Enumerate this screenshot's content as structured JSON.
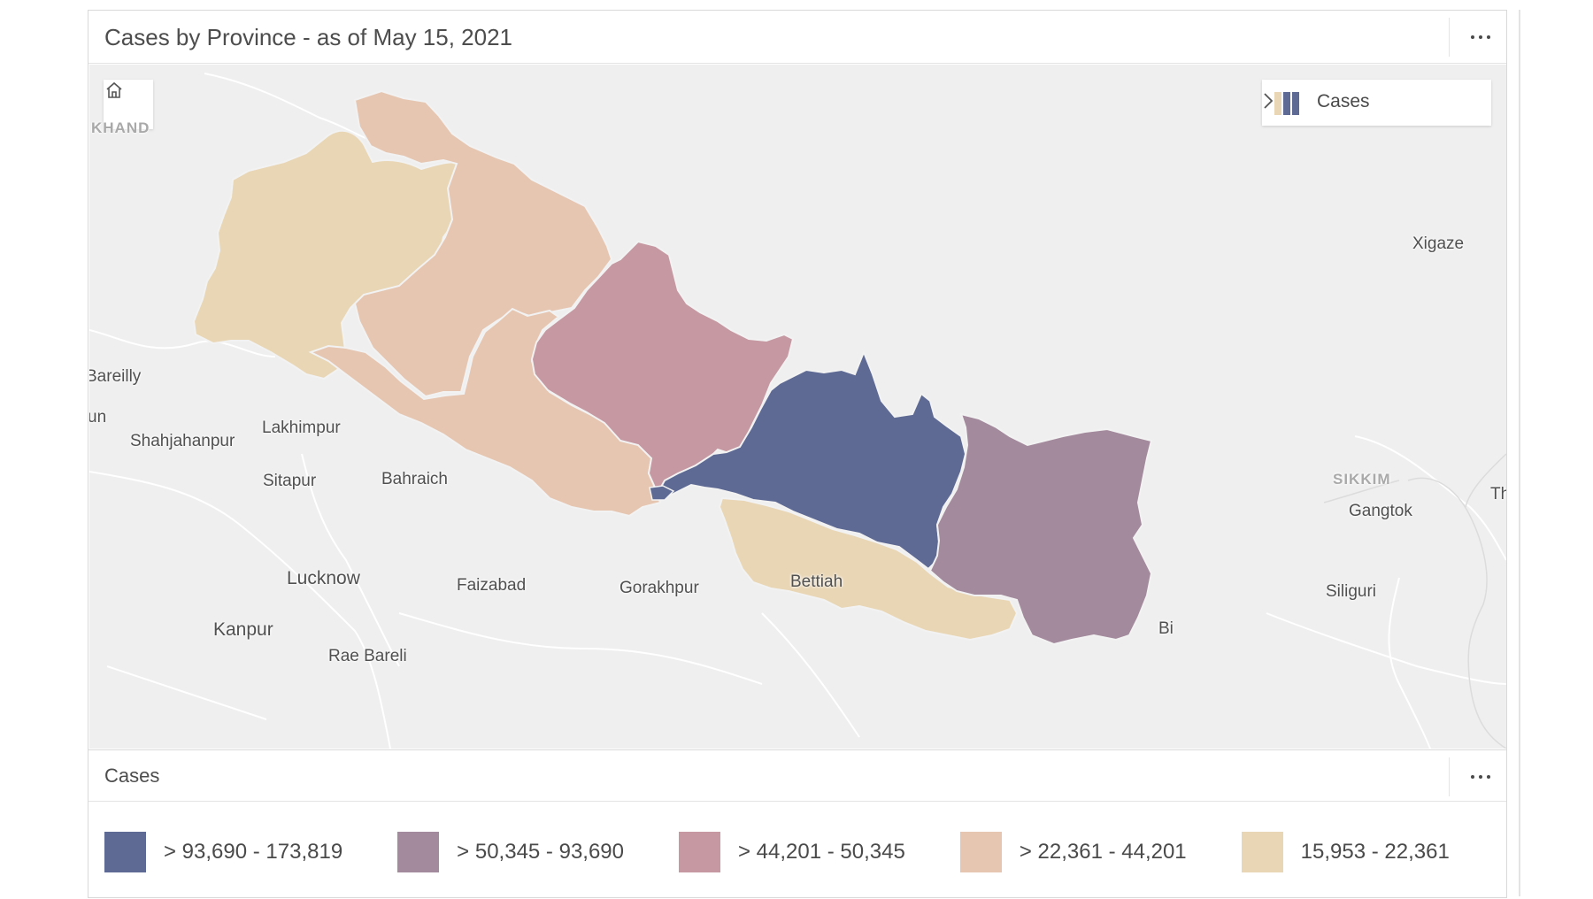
{
  "header": {
    "title": "Cases by Province - as of May 15, 2021"
  },
  "map": {
    "legend_toggle_label": "Cases",
    "places": [
      {
        "id": "kh",
        "label": "KHAND",
        "kind": "region"
      },
      {
        "id": "xigaze",
        "label": "Xigaze",
        "kind": "city"
      },
      {
        "id": "bareilly",
        "label": "Bareilly",
        "kind": "city"
      },
      {
        "id": "un",
        "label": "un",
        "kind": "city"
      },
      {
        "id": "lakhimpur",
        "label": "Lakhimpur",
        "kind": "city"
      },
      {
        "id": "shahjahanpur",
        "label": "Shahjahanpur",
        "kind": "city"
      },
      {
        "id": "sitapur",
        "label": "Sitapur",
        "kind": "city"
      },
      {
        "id": "bahraich",
        "label": "Bahraich",
        "kind": "city"
      },
      {
        "id": "lucknow",
        "label": "Lucknow",
        "kind": "city-major"
      },
      {
        "id": "faizabad",
        "label": "Faizabad",
        "kind": "city"
      },
      {
        "id": "gorakhpur",
        "label": "Gorakhpur",
        "kind": "city"
      },
      {
        "id": "bettiah",
        "label": "Bettiah",
        "kind": "city"
      },
      {
        "id": "kanpur",
        "label": "Kanpur",
        "kind": "city-major"
      },
      {
        "id": "raebareli",
        "label": "Rae Bareli",
        "kind": "city"
      },
      {
        "id": "sikkim",
        "label": "SIKKIM",
        "kind": "region"
      },
      {
        "id": "gangtok",
        "label": "Gangtok",
        "kind": "city"
      },
      {
        "id": "siliguri",
        "label": "Siliguri",
        "kind": "city"
      },
      {
        "id": "th",
        "label": "Th",
        "kind": "city"
      },
      {
        "id": "bi",
        "label": "Bi",
        "kind": "city"
      }
    ],
    "provinces": [
      {
        "class": 4,
        "color": "#e9d6b5"
      },
      {
        "class": 3,
        "color": "#e6c6b1"
      },
      {
        "class": 3,
        "color": "#e6c6b1"
      },
      {
        "class": 2,
        "color": "#c598a2"
      },
      {
        "class": 0,
        "color": "#5e6a94"
      },
      {
        "class": 4,
        "color": "#e9d6b5"
      },
      {
        "class": 1,
        "color": "#a38a9c"
      }
    ]
  },
  "legend": {
    "title": "Cases",
    "classes": [
      {
        "label": "> 93,690 - 173,819",
        "color": "#5e6a94"
      },
      {
        "label": "> 50,345 - 93,690",
        "color": "#a38a9c"
      },
      {
        "label": "> 44,201 - 50,345",
        "color": "#c598a2"
      },
      {
        "label": "> 22,361 - 44,201",
        "color": "#e6c6b1"
      },
      {
        "label": "15,953 - 22,361",
        "color": "#e9d6b5"
      }
    ]
  }
}
